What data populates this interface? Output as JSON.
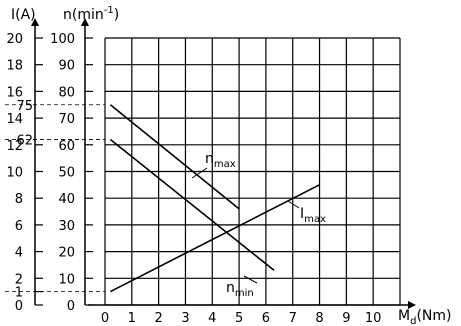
{
  "chart_data": {
    "type": "line",
    "axes": {
      "current": {
        "label": "I(A)",
        "ticks": [
          "0",
          "1",
          "2",
          "4",
          "6",
          "8",
          "10",
          "12",
          "14",
          "16",
          "18",
          "20"
        ],
        "values": [
          0,
          1,
          2,
          4,
          6,
          8,
          10,
          12,
          14,
          16,
          18,
          20
        ]
      },
      "speed": {
        "label_main": "n(min",
        "label_sup": "-1",
        "label_end": ")",
        "ticks": [
          "0",
          "10",
          "20",
          "30",
          "40",
          "50",
          "60",
          "70",
          "80",
          "90",
          "100"
        ],
        "values": [
          0,
          10,
          20,
          30,
          40,
          50,
          60,
          70,
          80,
          90,
          100
        ],
        "extra_ticks": [
          "75",
          "62"
        ],
        "extra_values": [
          75,
          62
        ]
      },
      "torque": {
        "label_main": "M",
        "label_sub": "d",
        "label_end": "(Nm)",
        "ticks": [
          "0",
          "1",
          "2",
          "3",
          "4",
          "5",
          "6",
          "7",
          "8",
          "9",
          "10"
        ],
        "values": [
          0,
          1,
          2,
          3,
          4,
          5,
          6,
          7,
          8,
          9,
          10
        ]
      }
    },
    "series": [
      {
        "name_main": "n",
        "name_sub": "max",
        "axis": "speed",
        "x": [
          0.2,
          5.0
        ],
        "y": [
          75,
          36
        ]
      },
      {
        "name_main": "n",
        "name_sub": "min",
        "axis": "speed",
        "x": [
          0.2,
          6.3
        ],
        "y": [
          62,
          13
        ]
      },
      {
        "name_main": "I",
        "name_sub": "max",
        "axis": "current",
        "x": [
          0.2,
          8.0
        ],
        "y": [
          1,
          9
        ]
      }
    ],
    "grid": true
  }
}
